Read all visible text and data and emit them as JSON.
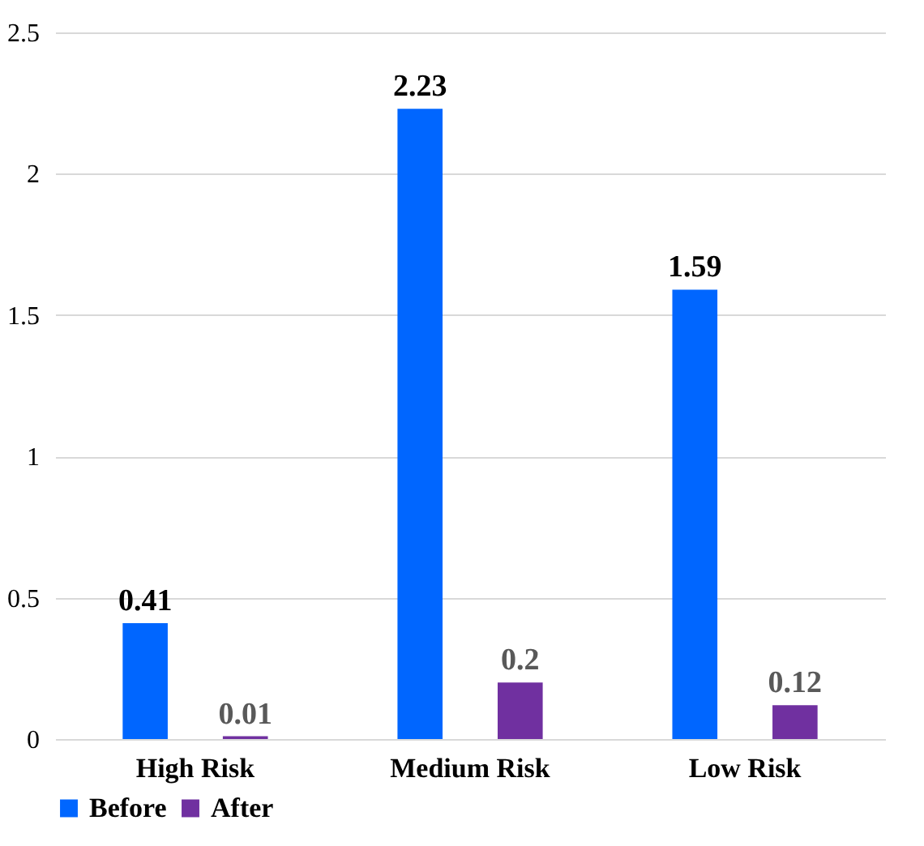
{
  "chart_data": {
    "type": "bar",
    "categories": [
      "High Risk",
      "Medium Risk",
      "Low Risk"
    ],
    "series": [
      {
        "name": "Before",
        "color": "#0066ff",
        "values": [
          0.41,
          2.23,
          1.59
        ]
      },
      {
        "name": "After",
        "color": "#7030a0",
        "values": [
          0.01,
          0.2,
          0.12
        ]
      }
    ],
    "ylim": [
      0,
      2.5
    ],
    "yticks": [
      0,
      0.5,
      1,
      1.5,
      2,
      2.5
    ],
    "grid": "y",
    "legend": "bottom",
    "data_labels": true
  }
}
